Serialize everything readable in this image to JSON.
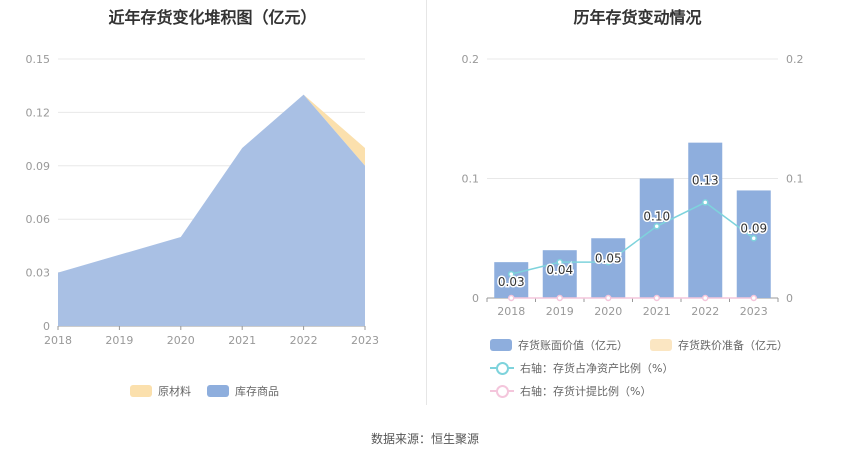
{
  "source_text": "数据来源：恒生聚源",
  "chart_data": [
    {
      "type": "area",
      "stacked": true,
      "title": "近年存货变化堆积图（亿元）",
      "categories": [
        "2018",
        "2019",
        "2020",
        "2021",
        "2022",
        "2023"
      ],
      "series": [
        {
          "name": "库存商品",
          "values": [
            0.03,
            0.04,
            0.05,
            0.1,
            0.13,
            0.09
          ],
          "color": "#a9c0e4"
        },
        {
          "name": "原材料",
          "values": [
            0,
            0,
            0,
            0,
            0,
            0.01
          ],
          "color": "#fbe0ad"
        }
      ],
      "ylim": [
        0,
        0.15
      ],
      "yticks": [
        "0",
        "0.03",
        "0.06",
        "0.09",
        "0.12",
        "0.15"
      ],
      "legend": [
        {
          "name": "原材料",
          "color": "#fbe0ad"
        },
        {
          "name": "库存商品",
          "color": "#8eaedd"
        }
      ],
      "legend_position": "bottom",
      "grid": true
    },
    {
      "type": "bar",
      "title": "历年存货变动情况",
      "categories": [
        "2018",
        "2019",
        "2020",
        "2021",
        "2022",
        "2023"
      ],
      "series": [
        {
          "name": "存货账面价值（亿元）",
          "values": [
            0.03,
            0.04,
            0.05,
            0.1,
            0.13,
            0.09
          ],
          "labels": [
            "0.03",
            "0.04",
            "0.05",
            "0.10",
            "0.13",
            "0.09"
          ],
          "color": "#8eaedd",
          "axis": "left"
        },
        {
          "name": "存货跌价准备（亿元）",
          "values": [
            0,
            0,
            0,
            0,
            0,
            0
          ],
          "color": "#fbe6c2",
          "axis": "left"
        },
        {
          "name": "右轴：存货占净资产比例（%）",
          "type": "line",
          "values": [
            0.02,
            0.03,
            0.03,
            0.06,
            0.08,
            0.05
          ],
          "color": "#7ed3dc",
          "axis": "right"
        },
        {
          "name": "右轴：存货计提比例（%）",
          "type": "line",
          "values": [
            0,
            0,
            0,
            0,
            0,
            0
          ],
          "color": "#f4c6dc",
          "axis": "right"
        }
      ],
      "ylim": [
        0,
        0.2
      ],
      "yticks": [
        "0",
        "0.1",
        "0.2"
      ],
      "y2lim": [
        0,
        0.2
      ],
      "y2ticks": [
        "0",
        "0.1",
        "0.2"
      ],
      "legend_position": "bottom",
      "grid": true
    }
  ]
}
